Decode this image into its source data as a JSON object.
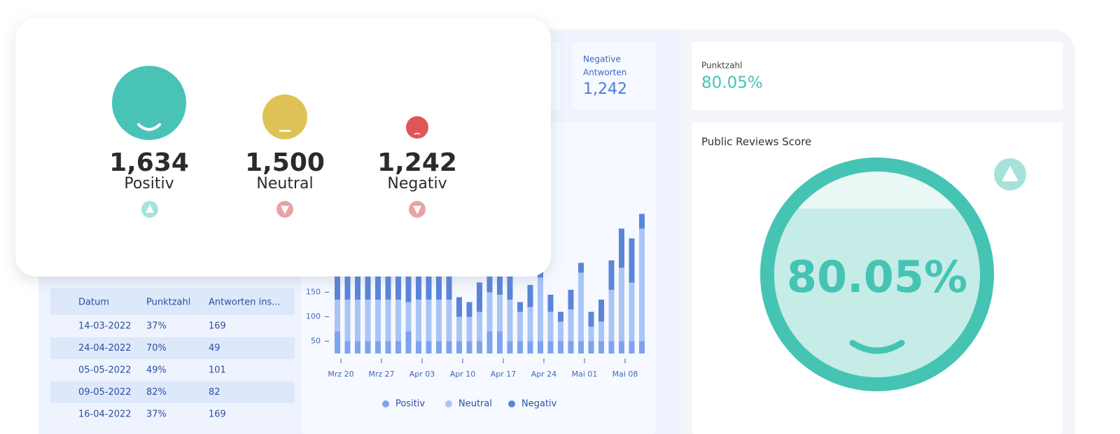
{
  "sentiment_card": {
    "items": [
      {
        "count": "1,634",
        "label": "Positiv"
      },
      {
        "count": "1,500",
        "label": "Neutral"
      },
      {
        "count": "1,242",
        "label": "Negativ"
      }
    ]
  },
  "kpis": [
    {
      "label": "Negative Antworten",
      "value": "1,242"
    },
    {
      "label": "Punktzahl",
      "value": "80.05%"
    }
  ],
  "gauge": {
    "title": "Public Reviews Score",
    "value": "80.05%"
  },
  "table": {
    "headers": [
      "Datum",
      "Punktzahl",
      "Antworten ins..."
    ],
    "rows": [
      [
        "14-03-2022",
        "37%",
        "169"
      ],
      [
        "24-04-2022",
        "70%",
        "49"
      ],
      [
        "05-05-2022",
        "49%",
        "101"
      ],
      [
        "09-05-2022",
        "82%",
        "82"
      ],
      [
        "16-04-2022",
        "37%",
        "169"
      ]
    ]
  },
  "chart_data": {
    "type": "bar",
    "stacked": true,
    "categories": [
      "Mrz 20",
      null,
      null,
      null,
      "Mrz 27",
      null,
      null,
      null,
      "Apr 03",
      null,
      null,
      null,
      "Apr 10",
      null,
      null,
      null,
      "Apr 17",
      null,
      null,
      null,
      "Apr 24",
      null,
      null,
      null,
      "Mai 01",
      null,
      null,
      null,
      "Mai 08",
      null,
      null
    ],
    "series": [
      {
        "name": "Positiv",
        "color": "#7ea3ee",
        "values": [
          70,
          50,
          50,
          50,
          50,
          50,
          50,
          70,
          50,
          50,
          50,
          50,
          50,
          50,
          50,
          70,
          70,
          50,
          50,
          50,
          50,
          50,
          50,
          50,
          50,
          50,
          50,
          50,
          50,
          50,
          50
        ]
      },
      {
        "name": "Neutral",
        "color": "#a9c5f6",
        "values": [
          65,
          85,
          85,
          85,
          85,
          85,
          85,
          60,
          85,
          85,
          85,
          85,
          50,
          50,
          60,
          80,
          75,
          85,
          60,
          70,
          130,
          60,
          40,
          65,
          140,
          30,
          40,
          105,
          150,
          120,
          230
        ]
      },
      {
        "name": "Negativ",
        "color": "#5a85d8",
        "values": [
          60,
          60,
          60,
          60,
          60,
          60,
          60,
          60,
          60,
          60,
          60,
          60,
          40,
          30,
          60,
          80,
          70,
          80,
          20,
          45,
          20,
          35,
          20,
          40,
          20,
          30,
          45,
          60,
          80,
          90,
          30
        ]
      }
    ],
    "ylim": [
      25,
      350
    ],
    "yticks": [
      50,
      100,
      150
    ],
    "legend": "bottom"
  }
}
